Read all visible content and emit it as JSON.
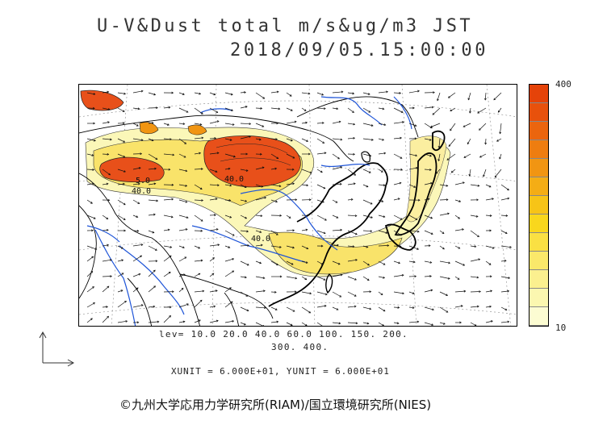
{
  "title": {
    "line1": "U-V&Dust total m/s&ug/m3 JST",
    "line2": "2018/09/05.15:00:00"
  },
  "colorbar": {
    "max_label": "400",
    "min_label": "10",
    "colors": [
      "#fcfcd2",
      "#fbf7b0",
      "#fbf08f",
      "#fae86a",
      "#fae043",
      "#f9d71d",
      "#f7c417",
      "#f4ad15",
      "#f19512",
      "#ee7d10",
      "#eb650e",
      "#e8510c",
      "#e54309"
    ]
  },
  "contour_levels": {
    "line1": "lev= 10.0 20.0 40.0 60.0 100. 150. 200.",
    "line2": "300. 400."
  },
  "units": "XUNIT = 6.000E+01, YUNIT = 6.000E+01",
  "contour_labels": [
    "40.0",
    "40.0",
    "40.0",
    "5.0"
  ],
  "copyright": "©九州大学応用力学研究所(RIAM)/国立環境研究所(NIES)",
  "palette": {
    "dust_high": "#e8501a",
    "dust_mid": "#f7c51c",
    "dust_low": "#fbf3a6",
    "river": "#1f55d8",
    "coast": "#000000",
    "arrow": "#111111"
  }
}
